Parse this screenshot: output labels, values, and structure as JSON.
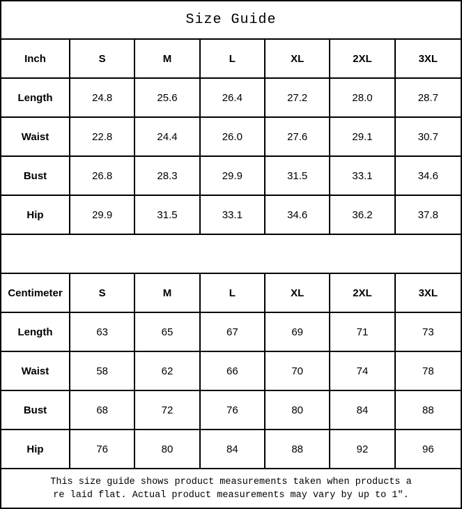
{
  "title": "Size Guide",
  "columns": [
    "S",
    "M",
    "L",
    "XL",
    "2XL",
    "3XL"
  ],
  "tables": [
    {
      "unit": "Inch",
      "rows": [
        {
          "label": "Length",
          "values": [
            "24.8",
            "25.6",
            "26.4",
            "27.2",
            "28.0",
            "28.7"
          ]
        },
        {
          "label": "Waist",
          "values": [
            "22.8",
            "24.4",
            "26.0",
            "27.6",
            "29.1",
            "30.7"
          ]
        },
        {
          "label": "Bust",
          "values": [
            "26.8",
            "28.3",
            "29.9",
            "31.5",
            "33.1",
            "34.6"
          ]
        },
        {
          "label": "Hip",
          "values": [
            "29.9",
            "31.5",
            "33.1",
            "34.6",
            "36.2",
            "37.8"
          ]
        }
      ]
    },
    {
      "unit": "Centimeter",
      "rows": [
        {
          "label": "Length",
          "values": [
            "63",
            "65",
            "67",
            "69",
            "71",
            "73"
          ]
        },
        {
          "label": "Waist",
          "values": [
            "58",
            "62",
            "66",
            "70",
            "74",
            "78"
          ]
        },
        {
          "label": "Bust",
          "values": [
            "68",
            "72",
            "76",
            "80",
            "84",
            "88"
          ]
        },
        {
          "label": "Hip",
          "values": [
            "76",
            "80",
            "84",
            "88",
            "92",
            "96"
          ]
        }
      ]
    }
  ],
  "footer": {
    "line1": "This size guide shows product measurements taken when products a",
    "line2": "re laid flat. Actual product measurements may vary by up to 1″."
  },
  "colors": {
    "border": "#000000",
    "background": "#ffffff",
    "text": "#000000"
  },
  "chart_data": {
    "type": "table",
    "title": "Size Guide",
    "note": "This size guide shows product measurements taken when products are laid flat. Actual product measurements may vary by up to 1″.",
    "tables": [
      {
        "unit": "Inch",
        "columns": [
          "Inch",
          "S",
          "M",
          "L",
          "XL",
          "2XL",
          "3XL"
        ],
        "rows": [
          [
            "Length",
            24.8,
            25.6,
            26.4,
            27.2,
            28.0,
            28.7
          ],
          [
            "Waist",
            22.8,
            24.4,
            26.0,
            27.6,
            29.1,
            30.7
          ],
          [
            "Bust",
            26.8,
            28.3,
            29.9,
            31.5,
            33.1,
            34.6
          ],
          [
            "Hip",
            29.9,
            31.5,
            33.1,
            34.6,
            36.2,
            37.8
          ]
        ]
      },
      {
        "unit": "Centimeter",
        "columns": [
          "Centimeter",
          "S",
          "M",
          "L",
          "XL",
          "2XL",
          "3XL"
        ],
        "rows": [
          [
            "Length",
            63,
            65,
            67,
            69,
            71,
            73
          ],
          [
            "Waist",
            58,
            62,
            66,
            70,
            74,
            78
          ],
          [
            "Bust",
            68,
            72,
            76,
            80,
            84,
            88
          ],
          [
            "Hip",
            76,
            80,
            84,
            88,
            92,
            96
          ]
        ]
      }
    ]
  }
}
